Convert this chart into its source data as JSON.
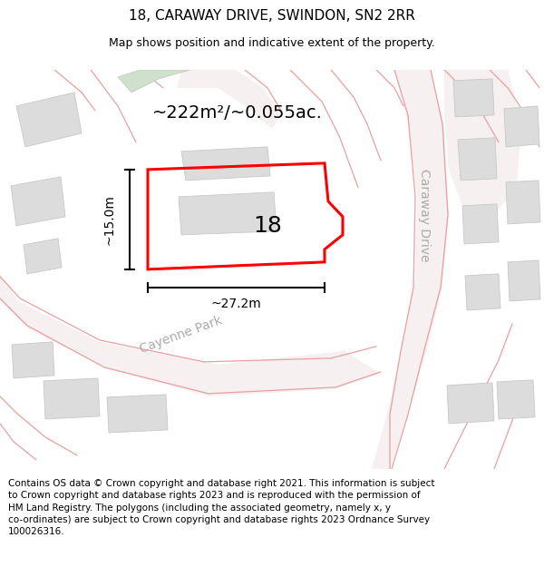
{
  "title": "18, CARAWAY DRIVE, SWINDON, SN2 2RR",
  "subtitle": "Map shows position and indicative extent of the property.",
  "footer": "Contains OS data © Crown copyright and database right 2021. This information is subject\nto Crown copyright and database rights 2023 and is reproduced with the permission of\nHM Land Registry. The polygons (including the associated geometry, namely x, y\nco-ordinates) are subject to Crown copyright and database rights 2023 Ordnance Survey\n100026316.",
  "background_color": "#ffffff",
  "map_bg_color": "#f0f0f0",
  "road_surface_color": "#f7f0f0",
  "road_line_color": "#e8a0a0",
  "building_color": "#dcdcdc",
  "building_edge_color": "#c8c8c8",
  "green_area_color": "#cfe0cc",
  "property_color": "#ff0000",
  "property_label": "18",
  "area_text": "~222m²/~0.055ac.",
  "width_text": "~27.2m",
  "height_text": "~15.0m",
  "road_label_cayenne": "Cayenne Park",
  "road_label_caraway": "Caraway Drive",
  "title_fontsize": 11,
  "subtitle_fontsize": 9,
  "footer_fontsize": 7.5,
  "dim_fontsize": 10,
  "area_fontsize": 14,
  "label_fontsize": 18,
  "road_label_fontsize": 10,
  "road_label_color": "#aaaaaa"
}
